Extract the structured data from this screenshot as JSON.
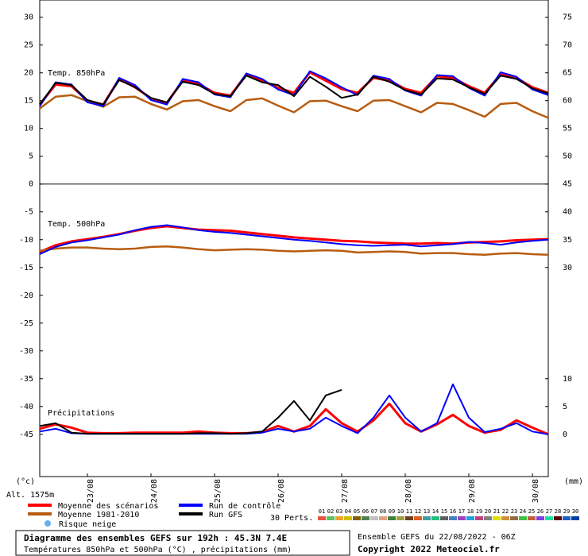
{
  "chart_data": {
    "type": "line",
    "title": "Diagramme des ensembles GEFS sur 192h : 45.3N 7.4E",
    "subtitle": "Températures 850hPa et 500hPa (°C) , précipitations (mm)",
    "run_info": "Ensemble GEFS du 22/08/2022 - 06Z",
    "copyright": "Copyright 2022 Meteociel.fr",
    "altitude": "Alt. 1575m",
    "y_label": "(°c)",
    "y2_label": "(mm)",
    "panel_labels": [
      "Temp. 850hPa",
      "Temp. 500hPa",
      "Précipitations"
    ],
    "snow_legend": "Risque neige",
    "perturbations_label": "30 Perts.",
    "perturbations": [
      {
        "label": "01",
        "color": "#e8543c"
      },
      {
        "label": "02",
        "color": "#60c060"
      },
      {
        "label": "03",
        "color": "#f0a030"
      },
      {
        "label": "04",
        "color": "#d0c000"
      },
      {
        "label": "05",
        "color": "#806000"
      },
      {
        "label": "06",
        "color": "#508050"
      },
      {
        "label": "07",
        "color": "#c0c0c0"
      },
      {
        "label": "08",
        "color": "#e0a080"
      },
      {
        "label": "09",
        "color": "#408040"
      },
      {
        "label": "10",
        "color": "#a0a040"
      },
      {
        "label": "11",
        "color": "#704020"
      },
      {
        "label": "12",
        "color": "#e06020"
      },
      {
        "label": "13",
        "color": "#40a0a0"
      },
      {
        "label": "14",
        "color": "#20c080"
      },
      {
        "label": "15",
        "color": "#606060"
      },
      {
        "label": "16",
        "color": "#4080c0"
      },
      {
        "label": "17",
        "color": "#a040c0"
      },
      {
        "label": "18",
        "color": "#20a0e0"
      },
      {
        "label": "19",
        "color": "#c04080"
      },
      {
        "label": "20",
        "color": "#808080"
      },
      {
        "label": "21",
        "color": "#e0e000"
      },
      {
        "label": "22",
        "color": "#d09040"
      },
      {
        "label": "23",
        "color": "#907040"
      },
      {
        "label": "24",
        "color": "#40c040"
      },
      {
        "label": "25",
        "color": "#c06040"
      },
      {
        "label": "26",
        "color": "#8040e0"
      },
      {
        "label": "27",
        "color": "#20e0a0"
      },
      {
        "label": "28",
        "color": "#600000"
      },
      {
        "label": "29",
        "color": "#2060c0"
      },
      {
        "label": "30",
        "color": "#0040a0"
      }
    ],
    "x": [
      6,
      12,
      18,
      24,
      30,
      36,
      42,
      48,
      54,
      60,
      66,
      72,
      78,
      84,
      90,
      96,
      102,
      108,
      114,
      120,
      126,
      132,
      138,
      144,
      150,
      156,
      162,
      168,
      174,
      180,
      186,
      192,
      198
    ],
    "xlim": [
      6,
      198
    ],
    "xticks": [
      {
        "value": 24,
        "label": "23/08"
      },
      {
        "value": 48,
        "label": "24/08"
      },
      {
        "value": 72,
        "label": "25/08"
      },
      {
        "value": 96,
        "label": "26/08"
      },
      {
        "value": 120,
        "label": "27/08"
      },
      {
        "value": 144,
        "label": "28/08"
      },
      {
        "value": 168,
        "label": "29/08"
      },
      {
        "value": 192,
        "label": "30/08"
      }
    ],
    "ylim": [
      -52.6,
      33.1
    ],
    "yticks": [
      30,
      25,
      20,
      15,
      10,
      5,
      0,
      -5,
      -10,
      -15,
      -20,
      -25,
      -30,
      -35,
      -40,
      -45
    ],
    "y2lim": [
      -7.6,
      78.1
    ],
    "y2ticks": [
      75,
      70,
      65,
      60,
      55,
      50,
      45,
      40,
      35,
      30,
      10,
      5,
      0
    ],
    "series": [
      {
        "name": "Moyenne des scénarios",
        "color": "#ff0000",
        "values": [
          14.3,
          17.9,
          17.6,
          15.0,
          14.3,
          18.9,
          17.4,
          15.4,
          14.6,
          18.6,
          18.0,
          16.4,
          15.9,
          19.7,
          18.6,
          17.3,
          16.4,
          20.1,
          18.6,
          17.1,
          16.4,
          19.1,
          18.6,
          17.1,
          16.4,
          19.4,
          19.1,
          17.6,
          16.4,
          19.7,
          19.1,
          17.4,
          16.4
        ]
      },
      {
        "name": "Moyenne 1981-2010",
        "color": "#b85c10",
        "values": [
          13.6,
          15.7,
          16.0,
          14.9,
          13.9,
          15.6,
          15.7,
          14.4,
          13.4,
          14.9,
          15.1,
          14.0,
          13.1,
          15.1,
          15.4,
          14.1,
          12.9,
          14.9,
          15.0,
          14.0,
          13.1,
          15.0,
          15.1,
          14.0,
          12.9,
          14.6,
          14.4,
          13.3,
          12.1,
          14.4,
          14.6,
          13.1,
          11.9
        ]
      },
      {
        "name": "Run de contrôle",
        "color": "#0000ff",
        "values": [
          14.0,
          18.3,
          17.9,
          14.7,
          14.0,
          19.1,
          17.8,
          15.1,
          14.3,
          18.9,
          18.3,
          16.1,
          15.6,
          19.9,
          18.9,
          17.0,
          16.0,
          20.3,
          19.0,
          17.4,
          16.0,
          19.5,
          18.9,
          16.8,
          15.9,
          19.6,
          19.4,
          17.3,
          15.9,
          20.1,
          19.3,
          17.0,
          16.0
        ]
      },
      {
        "name": "Run GFS",
        "color": "#000000",
        "values": [
          14.3,
          18.2,
          17.8,
          15.1,
          14.3,
          18.7,
          17.4,
          15.5,
          14.7,
          18.4,
          17.8,
          16.2,
          15.8,
          19.5,
          18.3,
          17.8,
          15.8,
          19.3,
          17.5,
          15.5,
          16.1,
          19.3,
          18.4,
          16.9,
          16.1,
          19.0,
          18.8,
          17.4,
          16.2,
          19.5,
          18.9,
          17.2,
          16.3
        ]
      },
      {
        "name": "Moyenne des scénarios",
        "color": "#ff0000",
        "values": [
          -12.2,
          -11.0,
          -10.3,
          -9.9,
          -9.5,
          -9.0,
          -8.4,
          -7.9,
          -7.6,
          -7.9,
          -8.2,
          -8.3,
          -8.4,
          -8.7,
          -9.0,
          -9.3,
          -9.6,
          -9.8,
          -10.0,
          -10.2,
          -10.3,
          -10.5,
          -10.6,
          -10.7,
          -10.7,
          -10.6,
          -10.7,
          -10.5,
          -10.4,
          -10.3,
          -10.1,
          -10.0,
          -9.9
        ]
      },
      {
        "name": "Moyenne 1981-2010",
        "color": "#b85c10",
        "values": [
          -12.0,
          -11.6,
          -11.4,
          -11.4,
          -11.6,
          -11.7,
          -11.6,
          -11.3,
          -11.2,
          -11.4,
          -11.7,
          -11.9,
          -11.8,
          -11.7,
          -11.8,
          -12.0,
          -12.1,
          -12.0,
          -11.9,
          -12.0,
          -12.3,
          -12.2,
          -12.1,
          -12.2,
          -12.5,
          -12.4,
          -12.4,
          -12.6,
          -12.7,
          -12.5,
          -12.4,
          -12.6,
          -12.7
        ]
      },
      {
        "name": "Run de contrôle",
        "color": "#0000ff",
        "values": [
          -12.6,
          -11.3,
          -10.5,
          -10.1,
          -9.6,
          -9.1,
          -8.3,
          -7.7,
          -7.4,
          -7.8,
          -8.3,
          -8.6,
          -8.8,
          -9.1,
          -9.4,
          -9.7,
          -10.0,
          -10.2,
          -10.5,
          -10.8,
          -11.0,
          -11.1,
          -11.0,
          -10.9,
          -11.2,
          -11.0,
          -10.8,
          -10.4,
          -10.6,
          -10.9,
          -10.5,
          -10.2,
          -10.0
        ]
      },
      {
        "name": "Moyenne des scénarios",
        "color": "#ff0000",
        "axis": "y2",
        "values": [
          1,
          1.8,
          1.2,
          0.3,
          0.2,
          0.2,
          0.3,
          0.3,
          0.3,
          0.3,
          0.5,
          0.3,
          0.2,
          0.2,
          0.4,
          1.5,
          0.5,
          1.5,
          4.5,
          2,
          0.5,
          2.5,
          5.5,
          2,
          0.5,
          1.8,
          3.5,
          1.5,
          0.3,
          0.8,
          2.5,
          1.2,
          0
        ]
      },
      {
        "name": "Run de contrôle",
        "color": "#0000ff",
        "axis": "y2",
        "values": [
          0.5,
          1,
          0.2,
          0.1,
          0.1,
          0.1,
          0.1,
          0.1,
          0.1,
          0.1,
          0.1,
          0.1,
          0.1,
          0.1,
          0.3,
          1,
          0.5,
          1,
          3,
          1.5,
          0.2,
          3,
          7,
          3,
          0.5,
          2,
          9,
          3,
          0.4,
          1,
          2,
          0.5,
          0
        ]
      },
      {
        "name": "Run GFS",
        "color": "#000000",
        "axis": "y2",
        "values": [
          1.5,
          2,
          0.3,
          0.1,
          0.1,
          0.1,
          0.1,
          0.1,
          0.1,
          0.1,
          0.2,
          0.2,
          0.1,
          0.2,
          0.5,
          3,
          6,
          2.5,
          7,
          8,
          null,
          null,
          null,
          null,
          null,
          null,
          null,
          null,
          null,
          null,
          null,
          null,
          null
        ]
      }
    ],
    "separators": [
      0
    ]
  }
}
